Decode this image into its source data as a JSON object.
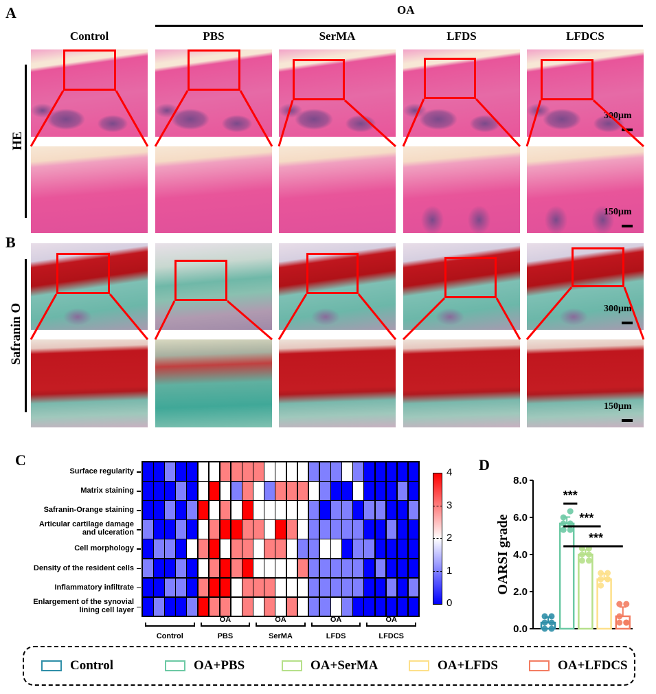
{
  "panels": {
    "A": "A",
    "B": "B",
    "C": "C",
    "D": "D"
  },
  "header": {
    "group_title": "OA",
    "columns": [
      "Control",
      "PBS",
      "SerMA",
      "LFDS",
      "LFDCS"
    ]
  },
  "rows": {
    "he_label": "HE",
    "safranin_label": "Safranin O"
  },
  "scale_bars": {
    "overview": "300μm",
    "zoomed": "150μm"
  },
  "colors": {
    "he_pink": "#e8559a",
    "he_light": "#f2a3c8",
    "he_bone": "#7a4a8a",
    "saf_red": "#c0161e",
    "saf_teal": "#6cb7a9",
    "saf_bg": "#d8d0d8",
    "zoom_box": "#ff0000",
    "heat_0": "#0000ff",
    "heat_1": "#8080ff",
    "heat_2": "#ffffff",
    "heat_3": "#ff8080",
    "heat_4": "#ff0000"
  },
  "heatmap": {
    "row_labels": [
      "Surface regularity",
      "Matrix staining",
      "Safranin-Orange staining",
      "Articular cartilage damage|and ulceration",
      "Cell morphology",
      "Density of the resident cells",
      "Inflammatory infiltrate",
      "Enlargement of the synovial|lining cell layer"
    ],
    "groups": [
      {
        "top": "",
        "bottom": "Control"
      },
      {
        "top": "OA",
        "bottom": "PBS"
      },
      {
        "top": "OA",
        "bottom": "SerMA"
      },
      {
        "top": "OA",
        "bottom": "LFDS"
      },
      {
        "top": "OA",
        "bottom": "LFDCS"
      }
    ],
    "colorbar_ticks": [
      "4",
      "3",
      "2",
      "1",
      "0"
    ]
  },
  "legend": [
    {
      "label": "Control",
      "color": "#2f8fa8"
    },
    {
      "label": "OA+PBS",
      "color": "#6cc9a4"
    },
    {
      "label": "OA+SerMA",
      "color": "#b6e08a"
    },
    {
      "label": "OA+LFDS",
      "color": "#fde08a"
    },
    {
      "label": "OA+LFDCS",
      "color": "#f37d62"
    }
  ],
  "chart_data": [
    {
      "type": "heatmap",
      "title": "",
      "rows": [
        "Surface regularity",
        "Matrix staining",
        "Safranin-Orange staining",
        "Articular cartilage damage and ulceration",
        "Cell morphology",
        "Density of the resident cells",
        "Inflammatory infiltrate",
        "Enlargement of the synovial lining cell layer"
      ],
      "column_groups": [
        "Control",
        "OA PBS",
        "OA SerMA",
        "OA LFDS",
        "OA LFDCS"
      ],
      "samples_per_group": 5,
      "values": [
        [
          0,
          0,
          1,
          0,
          0,
          2,
          2,
          3,
          3,
          3,
          3,
          2,
          2,
          2,
          2,
          1,
          1,
          1,
          2,
          1,
          0,
          0,
          0,
          0,
          0
        ],
        [
          0,
          0,
          0,
          1,
          0,
          2,
          4,
          2,
          1,
          3,
          2,
          1,
          3,
          3,
          3,
          2,
          1,
          0,
          0,
          2,
          0,
          0,
          0,
          1,
          0
        ],
        [
          0,
          0,
          1,
          0,
          1,
          4,
          2,
          3,
          2,
          4,
          2,
          2,
          2,
          2,
          2,
          1,
          0,
          1,
          1,
          0,
          1,
          1,
          0,
          0,
          1
        ],
        [
          1,
          0,
          0,
          1,
          0,
          2,
          3,
          4,
          4,
          3,
          3,
          2,
          4,
          3,
          2,
          1,
          1,
          1,
          1,
          1,
          0,
          0,
          1,
          0,
          0
        ],
        [
          0,
          1,
          1,
          0,
          2,
          3,
          4,
          2,
          3,
          3,
          2,
          3,
          3,
          2,
          1,
          1,
          2,
          2,
          0,
          1,
          1,
          0,
          0,
          0,
          0
        ],
        [
          1,
          0,
          0,
          1,
          0,
          2,
          3,
          4,
          3,
          4,
          2,
          2,
          2,
          2,
          3,
          1,
          1,
          1,
          1,
          1,
          0,
          1,
          0,
          0,
          0
        ],
        [
          0,
          0,
          1,
          1,
          0,
          3,
          4,
          4,
          2,
          3,
          3,
          3,
          2,
          2,
          2,
          1,
          1,
          1,
          1,
          1,
          0,
          0,
          1,
          0,
          1
        ],
        [
          0,
          1,
          0,
          0,
          1,
          4,
          3,
          3,
          2,
          3,
          2,
          3,
          2,
          3,
          2,
          1,
          1,
          2,
          1,
          0,
          0,
          0,
          0,
          0,
          0
        ]
      ],
      "colorbar": {
        "min": 0,
        "max": 4,
        "ticks": [
          0,
          1,
          2,
          3,
          4
        ],
        "colormap": "blue-white-red"
      }
    },
    {
      "type": "bar",
      "title": "",
      "xlabel": "",
      "ylabel": "OARSI grade",
      "ylim": [
        0,
        8
      ],
      "yticks": [
        "0.0",
        "2.0",
        "4.0",
        "6.0",
        "8.0"
      ],
      "categories": [
        "Control",
        "OA+PBS",
        "OA+SerMA",
        "OA+LFDS",
        "OA+LFDCS"
      ],
      "values": [
        0.33,
        5.67,
        4.0,
        2.67,
        0.67
      ],
      "errors": [
        0.3,
        0.35,
        0.25,
        0.3,
        0.5
      ],
      "points": [
        [
          0.0,
          0.33,
          0.33,
          0.67,
          0.67,
          0.0
        ],
        [
          5.33,
          5.33,
          5.67,
          5.67,
          6.0,
          6.33
        ],
        [
          3.67,
          3.67,
          4.0,
          4.0,
          4.33,
          4.33
        ],
        [
          2.33,
          2.67,
          2.67,
          3.0,
          3.0,
          2.67
        ],
        [
          0.33,
          0.33,
          0.67,
          0.33,
          1.33,
          1.33
        ]
      ],
      "significance": [
        {
          "from": "OA+PBS",
          "to": "OA+SerMA",
          "label": "***"
        },
        {
          "from": "OA+PBS",
          "to": "OA+LFDS",
          "label": "***"
        },
        {
          "from": "OA+PBS",
          "to": "OA+LFDCS",
          "label": "***"
        }
      ],
      "legend": "bottom",
      "grid": false
    }
  ]
}
